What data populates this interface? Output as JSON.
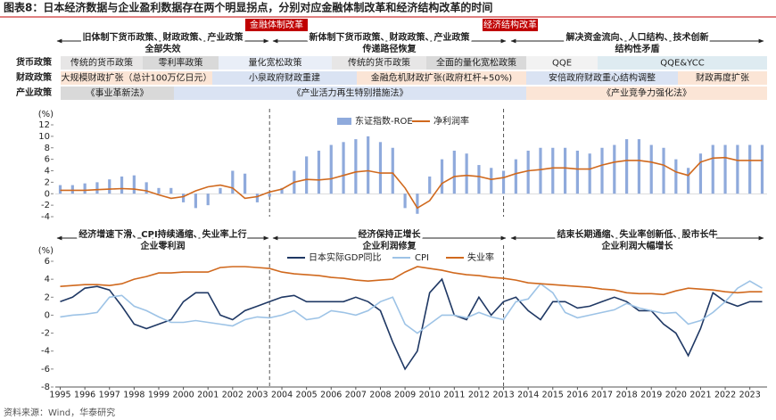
{
  "title": "图表8：日本经济数据与企业盈利数据存在两个明显拐点，分别对应金融体制改革和经济结构改革的时间",
  "reform_labels": [
    "金融体制改革",
    "经济结构改革"
  ],
  "periods": [
    {
      "line1": "旧体制下货币政策、财政政策、产业政策",
      "line2": "全部失效"
    },
    {
      "line1": "新体制下货币政策、财政政策、产业政策",
      "line2": "传递路径恢复"
    },
    {
      "line1": "解决资金流向、人口结构、技术创新",
      "line2": "结构性矛盾"
    }
  ],
  "policy_rows": [
    {
      "name": "货币政策",
      "items": [
        "传统的货币政策",
        "零利率政策",
        "量化宽松政策",
        "传统的货币政策",
        "全面的量化宽松政策",
        "QQE",
        "QQE&YCC"
      ]
    },
    {
      "name": "财政政策",
      "items": [
        "大规模财政扩张（总计100万亿日元）",
        "小泉政府财政重建",
        "金融危机财政扩张(政府杠杆+50%)",
        "安倍政府财政重心结构调整",
        "财政再度扩张"
      ]
    },
    {
      "name": "产业政策",
      "items": [
        "《事业革新法》",
        "《产业活力再生特别措施法》",
        "《产业竞争力强化法》"
      ]
    }
  ],
  "phase_notes": [
    {
      "line1": "经济增速下滑、CPI持续通缩、失业率上行",
      "line2": "企业零利润"
    },
    {
      "line1": "经济保持正增长",
      "line2": "企业利润修复"
    },
    {
      "line1": "结束长期通缩、失业率创新低、股市长牛",
      "line2": "企业利润大幅增长"
    }
  ],
  "source": "资料来源：Wind，华泰研究",
  "chart_data": [
    {
      "type": "combo",
      "y_label": "(%)",
      "x": [
        1995,
        1995.5,
        1996,
        1996.5,
        1997,
        1997.5,
        1998,
        1998.5,
        1999,
        1999.5,
        2000,
        2000.5,
        2001,
        2001.5,
        2002,
        2002.5,
        2003,
        2003.5,
        2004,
        2004.5,
        2005,
        2005.5,
        2006,
        2006.5,
        2007,
        2007.5,
        2008,
        2008.5,
        2009,
        2009.5,
        2010,
        2010.5,
        2011,
        2011.5,
        2012,
        2012.5,
        2013,
        2013.5,
        2014,
        2014.5,
        2015,
        2015.5,
        2016,
        2016.5,
        2017,
        2017.5,
        2018,
        2018.5,
        2019,
        2019.5,
        2020,
        2020.5,
        2021,
        2021.5,
        2022,
        2022.5,
        2023,
        2023.5
      ],
      "xlim": [
        1994.8,
        2023.7
      ],
      "ylim": [
        -4,
        12
      ],
      "yticks": [
        -4,
        -2,
        0,
        2,
        4,
        6,
        8,
        10,
        12
      ],
      "vlines": [
        2003.5,
        2013
      ],
      "series": [
        {
          "name": "东证指数-ROE",
          "type": "bar",
          "color": "#8faadc",
          "values": [
            1.5,
            1.5,
            1.8,
            2.0,
            2.5,
            3.0,
            3.2,
            2.0,
            1.0,
            1.0,
            -1.5,
            -2.5,
            -2.0,
            1.0,
            4.0,
            3.5,
            -1.5,
            -0.5,
            1.0,
            4.0,
            6.5,
            7.5,
            8.5,
            9.0,
            9.5,
            10.0,
            9.0,
            8.0,
            -2.5,
            -3.5,
            3.0,
            6.0,
            7.5,
            7.0,
            5.0,
            4.5,
            4.0,
            6.0,
            7.5,
            8.0,
            8.0,
            8.0,
            7.5,
            7.0,
            8.0,
            8.5,
            9.5,
            9.5,
            8.5,
            8.0,
            6.0,
            4.5,
            7.0,
            8.5,
            8.5,
            8.5,
            8.5,
            8.5
          ]
        },
        {
          "name": "净利润率",
          "type": "line",
          "color": "#d0691e",
          "values": [
            0.6,
            0.6,
            0.6,
            0.7,
            0.8,
            0.9,
            0.8,
            0.5,
            -0.2,
            -0.8,
            -0.5,
            0.5,
            1.2,
            1.5,
            1.0,
            -0.8,
            -0.5,
            0.3,
            0.8,
            2.0,
            2.5,
            2.4,
            2.6,
            3.2,
            3.8,
            4.0,
            3.6,
            3.6,
            1.0,
            -2.5,
            -1.2,
            1.8,
            3.0,
            3.2,
            3.0,
            2.5,
            2.8,
            3.5,
            4.0,
            4.2,
            4.5,
            4.5,
            4.3,
            4.3,
            5.0,
            5.5,
            5.8,
            5.8,
            5.5,
            5.0,
            3.8,
            3.2,
            5.5,
            6.2,
            6.3,
            5.8,
            5.8,
            5.8
          ]
        }
      ]
    },
    {
      "type": "line",
      "y_label": "(%)",
      "x": [
        1995,
        1995.5,
        1996,
        1996.5,
        1997,
        1997.5,
        1998,
        1998.5,
        1999,
        1999.5,
        2000,
        2000.5,
        2001,
        2001.5,
        2002,
        2002.5,
        2003,
        2003.5,
        2004,
        2004.5,
        2005,
        2005.5,
        2006,
        2006.5,
        2007,
        2007.5,
        2008,
        2008.5,
        2009,
        2009.5,
        2010,
        2010.5,
        2011,
        2011.5,
        2012,
        2012.5,
        2013,
        2013.5,
        2014,
        2014.5,
        2015,
        2015.5,
        2016,
        2016.5,
        2017,
        2017.5,
        2018,
        2018.5,
        2019,
        2019.5,
        2020,
        2020.5,
        2021,
        2021.5,
        2022,
        2022.5,
        2023,
        2023.5
      ],
      "xlim": [
        1994.8,
        2023.7
      ],
      "xticks": [
        1995,
        1996,
        1997,
        1998,
        1999,
        2000,
        2001,
        2002,
        2003,
        2004,
        2005,
        2006,
        2007,
        2008,
        2009,
        2010,
        2011,
        2012,
        2013,
        2014,
        2015,
        2016,
        2017,
        2018,
        2019,
        2020,
        2021,
        2022,
        2023
      ],
      "ylim": [
        -8,
        6
      ],
      "yticks": [
        -8,
        -6,
        -4,
        -2,
        0,
        2,
        4,
        6
      ],
      "vlines": [
        2003.5,
        2013
      ],
      "series": [
        {
          "name": "日本实际GDP同比",
          "color": "#1f3864",
          "values": [
            1.5,
            2.0,
            3.0,
            3.2,
            2.8,
            1.0,
            -1.0,
            -1.5,
            -1.0,
            -0.5,
            1.5,
            2.5,
            2.5,
            0.0,
            -0.5,
            0.5,
            1.0,
            1.5,
            2.0,
            2.2,
            1.5,
            1.5,
            1.5,
            1.5,
            2.0,
            1.5,
            0.5,
            -3.0,
            -6.0,
            -4.0,
            2.5,
            4.0,
            0.0,
            -0.5,
            2.0,
            0.0,
            1.5,
            2.0,
            0.5,
            -0.5,
            1.5,
            1.5,
            0.8,
            1.0,
            1.5,
            2.0,
            1.5,
            0.5,
            0.5,
            -1.0,
            -2.0,
            -4.5,
            -1.5,
            2.5,
            1.5,
            1.0,
            1.5,
            1.5
          ]
        },
        {
          "name": "CPI",
          "color": "#9dc3e6",
          "values": [
            -0.2,
            0.0,
            0.1,
            0.3,
            2.0,
            2.2,
            1.0,
            0.5,
            -0.2,
            -0.8,
            -0.8,
            -0.6,
            -0.8,
            -1.0,
            -1.2,
            -0.5,
            -0.2,
            -0.3,
            0.0,
            0.5,
            -0.5,
            -0.3,
            0.5,
            0.3,
            0.0,
            0.5,
            1.5,
            2.0,
            -1.0,
            -2.0,
            -1.0,
            0.0,
            0.0,
            -0.3,
            0.3,
            -0.2,
            -0.5,
            1.5,
            1.8,
            3.5,
            2.5,
            0.3,
            -0.3,
            0.0,
            0.3,
            0.6,
            1.3,
            0.8,
            0.5,
            0.2,
            0.3,
            -1.0,
            -0.6,
            0.3,
            1.5,
            3.0,
            3.8,
            3.0
          ]
        },
        {
          "name": "失业率",
          "color": "#d0691e",
          "values": [
            3.2,
            3.3,
            3.4,
            3.4,
            3.3,
            3.5,
            4.0,
            4.3,
            4.7,
            4.7,
            4.8,
            4.8,
            4.8,
            5.3,
            5.4,
            5.4,
            5.3,
            5.2,
            4.8,
            4.6,
            4.5,
            4.4,
            4.2,
            4.1,
            3.9,
            3.8,
            3.9,
            4.0,
            4.8,
            5.4,
            5.2,
            5.0,
            4.7,
            4.5,
            4.4,
            4.2,
            4.1,
            3.9,
            3.6,
            3.5,
            3.4,
            3.3,
            3.2,
            3.1,
            2.9,
            2.8,
            2.5,
            2.4,
            2.4,
            2.3,
            2.7,
            3.0,
            2.9,
            2.8,
            2.6,
            2.5,
            2.6,
            2.6
          ]
        }
      ]
    }
  ]
}
